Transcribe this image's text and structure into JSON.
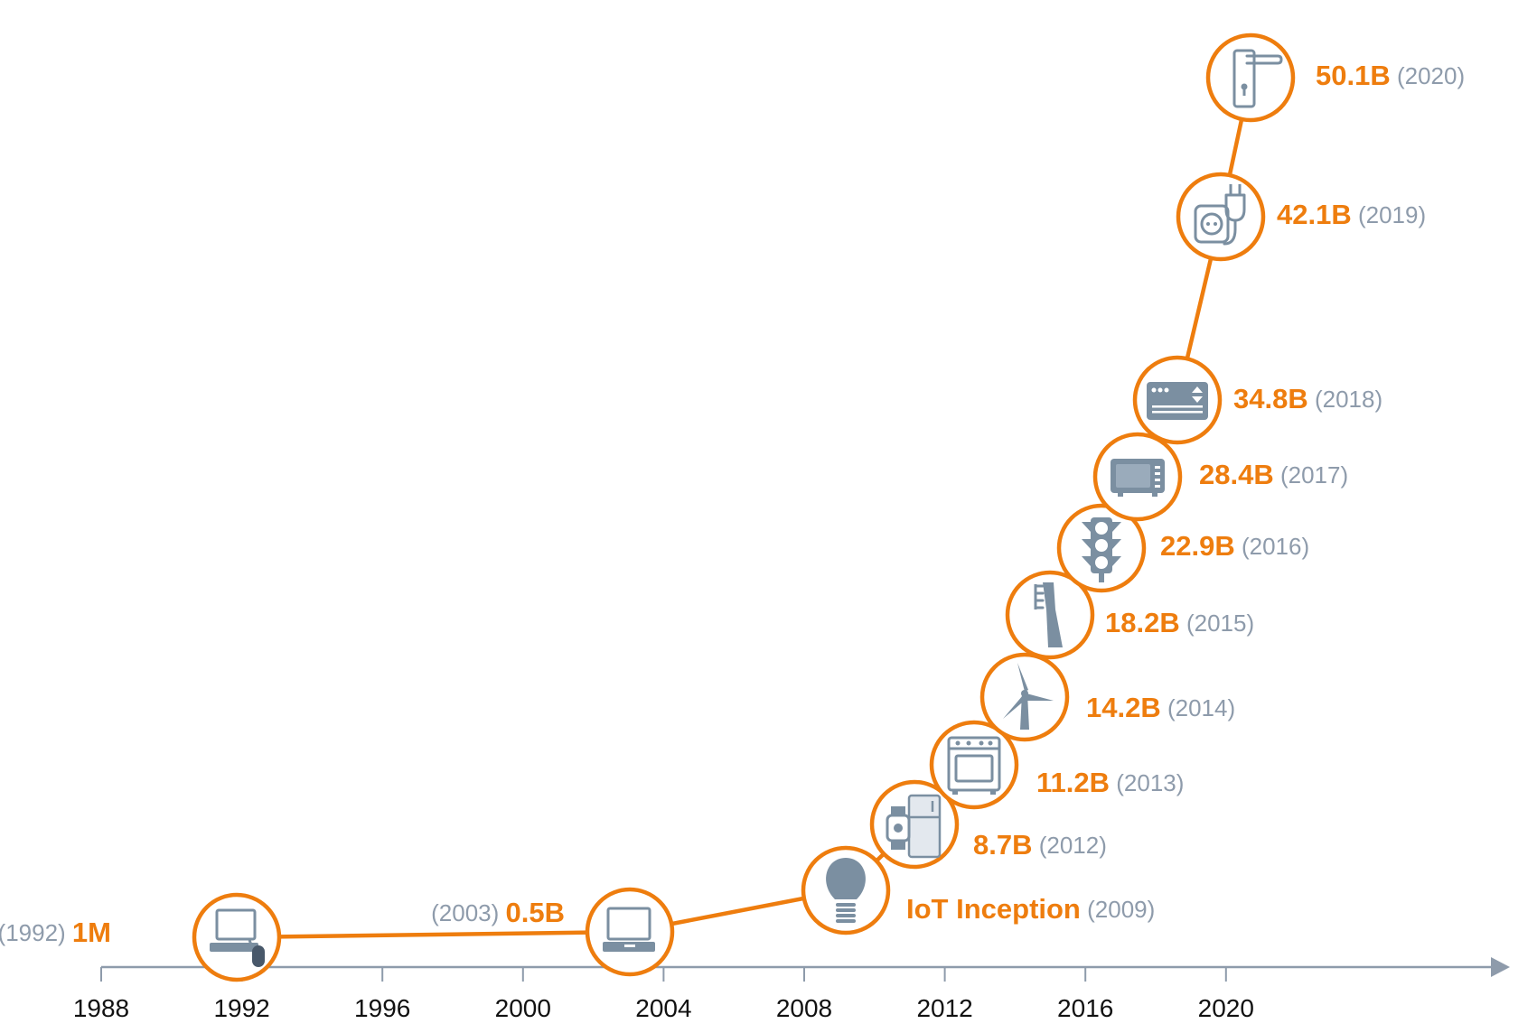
{
  "chart_data": {
    "type": "line",
    "title": "",
    "xlabel": "",
    "ylabel": "",
    "x_ticks": [
      "1988",
      "1992",
      "1996",
      "2000",
      "2004",
      "2008",
      "2012",
      "2016",
      "2020"
    ],
    "xlim": [
      1988,
      2024
    ],
    "series": [
      {
        "points": [
          {
            "year": 1992,
            "value_label": "1M",
            "year_label": "(1992)",
            "icon": "desktop-computer-icon"
          },
          {
            "year": 2003,
            "value_label": "0.5B",
            "year_label": "(2003)",
            "icon": "laptop-icon"
          },
          {
            "year": 2009,
            "value_label": "IoT Inception",
            "year_label": "(2009)",
            "icon": "light-bulb-icon"
          },
          {
            "year": 2012,
            "value_label": "8.7B",
            "year_label": "(2012)",
            "icon": "smartwatch-fridge-icon"
          },
          {
            "year": 2013,
            "value_label": "11.2B",
            "year_label": "(2013)",
            "icon": "oven-icon"
          },
          {
            "year": 2014,
            "value_label": "14.2B",
            "year_label": "(2014)",
            "icon": "wind-turbine-icon"
          },
          {
            "year": 2015,
            "value_label": "18.2B",
            "year_label": "(2015)",
            "icon": "toothbrush-icon"
          },
          {
            "year": 2016,
            "value_label": "22.9B",
            "year_label": "(2016)",
            "icon": "traffic-light-icon"
          },
          {
            "year": 2017,
            "value_label": "28.4B",
            "year_label": "(2017)",
            "icon": "microwave-icon"
          },
          {
            "year": 2018,
            "value_label": "34.8B",
            "year_label": "(2018)",
            "icon": "air-conditioner-icon"
          },
          {
            "year": 2019,
            "value_label": "42.1B",
            "year_label": "(2019)",
            "icon": "power-socket-plug-icon"
          },
          {
            "year": 2020,
            "value_label": "50.1B",
            "year_label": "(2020)",
            "icon": "door-handle-lock-icon"
          }
        ]
      }
    ],
    "colors": {
      "accent": "#ee7d0e",
      "muted": "#8e9bab",
      "axis": "#8e9bab",
      "icon": "#7b8fa1"
    }
  }
}
